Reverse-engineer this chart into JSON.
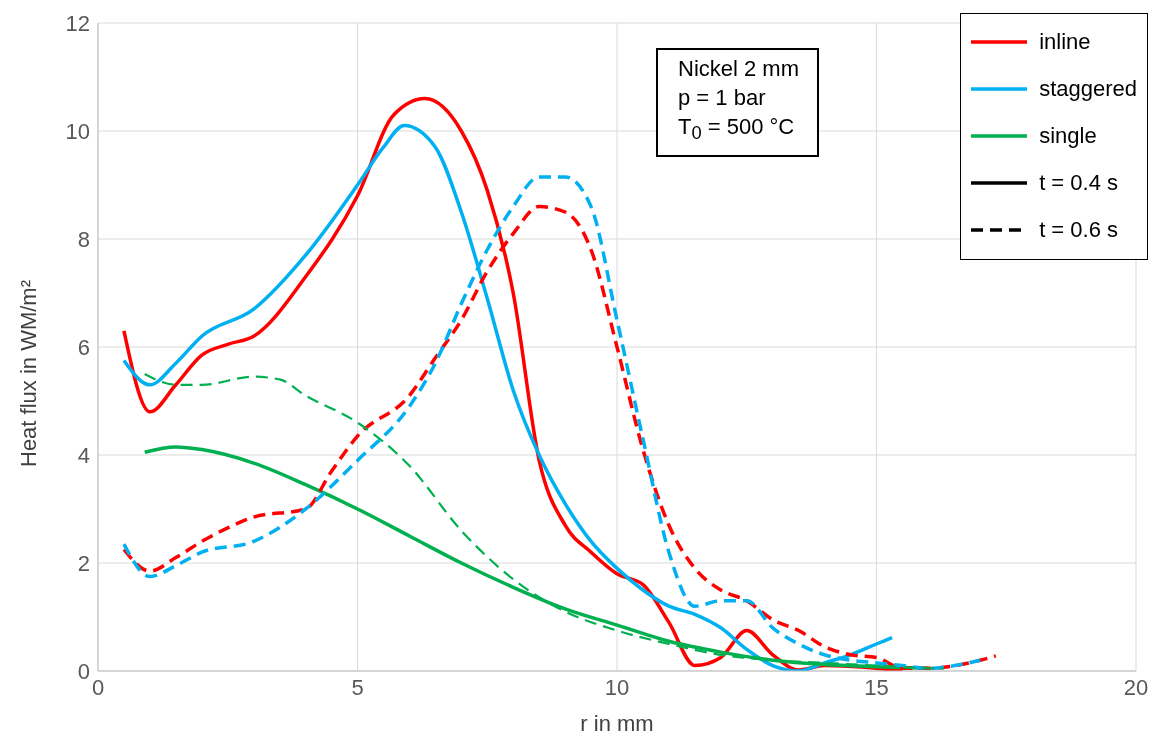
{
  "chart_data": {
    "type": "line",
    "xlabel": "r in mm",
    "ylabel": "Heat flux in WM/m²",
    "xlim": [
      0,
      20
    ],
    "xticks": [
      0,
      5,
      10,
      15,
      20
    ],
    "ylim": [
      0,
      12
    ],
    "yticks": [
      0,
      2,
      4,
      6,
      8,
      10,
      12
    ],
    "grid": true,
    "legend": "top right",
    "marker": "none",
    "annotations": [
      "Nickel 2 mm",
      "p = 1 bar",
      "T$_{0}$ = 500 °C"
    ],
    "series": [
      {
        "name": "inline",
        "color": "#ff0000",
        "line_style": "solid",
        "x": [
          0.5,
          1,
          1.5,
          2,
          2.5,
          3,
          4,
          5,
          5.7,
          6.3,
          7,
          7.5,
          8,
          8.5,
          9,
          9.5,
          10,
          10.5,
          11,
          11.5,
          12,
          12.5,
          13,
          13.5,
          14,
          15,
          15.5
        ],
        "values": [
          6.3,
          4.8,
          5.3,
          5.85,
          6.05,
          6.2,
          7.3,
          8.8,
          10.3,
          10.6,
          10.0,
          8.9,
          7.0,
          3.9,
          2.7,
          2.2,
          1.8,
          1.6,
          0.9,
          0.1,
          0.25,
          0.75,
          0.3,
          0.02,
          0.1,
          0.05,
          0.0
        ]
      },
      {
        "name": "staggered",
        "color": "#00b0f0",
        "line_style": "solid",
        "x": [
          0.5,
          1,
          1.5,
          2,
          3,
          4,
          5,
          5.5,
          5.9,
          6.5,
          7,
          7.5,
          8,
          8.5,
          9,
          9.5,
          10,
          10.5,
          11,
          11.5,
          12,
          12.5,
          13,
          13.5,
          14,
          14.5,
          15,
          15.3
        ],
        "values": [
          5.75,
          5.3,
          5.7,
          6.2,
          6.7,
          7.7,
          9.0,
          9.7,
          10.1,
          9.7,
          8.5,
          6.9,
          5.2,
          4.0,
          3.1,
          2.4,
          1.9,
          1.5,
          1.2,
          1.05,
          0.8,
          0.4,
          0.1,
          0.0,
          0.15,
          0.3,
          0.5,
          0.62
        ]
      },
      {
        "name": "single",
        "color": "#00b050",
        "line_style": "solid",
        "x": [
          0.9,
          1.5,
          2,
          3,
          4,
          5,
          6,
          7,
          8,
          9,
          10,
          11,
          12,
          13,
          14,
          15,
          16
        ],
        "values": [
          4.05,
          4.15,
          4.1,
          3.85,
          3.45,
          3.0,
          2.5,
          2.0,
          1.55,
          1.15,
          0.85,
          0.55,
          0.35,
          0.2,
          0.12,
          0.08,
          0.05
        ]
      },
      {
        "color": "#ff0000",
        "line_style": "dashed",
        "x": [
          0.5,
          1,
          1.5,
          2,
          2.5,
          3,
          4,
          4.5,
          5,
          6,
          6.5,
          7,
          7.5,
          8,
          8.5,
          9,
          9.5,
          10,
          10.5,
          11,
          11.5,
          12,
          12.5,
          13,
          13.5,
          14,
          14.5,
          15,
          15.5,
          16,
          17,
          17.3
        ],
        "values": [
          2.25,
          1.85,
          2.1,
          2.4,
          2.65,
          2.85,
          3.0,
          3.7,
          4.35,
          5.1,
          5.8,
          6.5,
          7.4,
          8.1,
          8.6,
          8.5,
          7.8,
          6.0,
          4.1,
          2.7,
          1.9,
          1.5,
          1.3,
          0.95,
          0.75,
          0.45,
          0.3,
          0.25,
          0.05,
          0.05,
          0.2,
          0.28
        ]
      },
      {
        "color": "#00b0f0",
        "line_style": "dashed",
        "x": [
          0.5,
          1,
          1.5,
          2,
          3,
          4,
          5,
          6,
          6.5,
          7,
          7.5,
          8,
          8.5,
          9,
          9.5,
          10,
          10.5,
          11,
          11.5,
          12,
          12.5,
          13,
          13.5,
          14,
          14.5,
          15,
          15.5,
          16,
          16.5,
          17
        ],
        "values": [
          2.35,
          1.75,
          1.95,
          2.2,
          2.4,
          3.0,
          3.9,
          4.9,
          5.7,
          6.8,
          7.8,
          8.6,
          9.15,
          9.15,
          8.6,
          6.5,
          4.3,
          2.2,
          1.2,
          1.3,
          1.3,
          0.8,
          0.5,
          0.3,
          0.2,
          0.15,
          0.1,
          0.05,
          0.1,
          0.2
        ]
      },
      {
        "color": "#00b050",
        "line_style": "dashed",
        "x": [
          0.9,
          1.5,
          2,
          3,
          3.5,
          4,
          5,
          6,
          7,
          8,
          9,
          10,
          11,
          12,
          13,
          14,
          15,
          16,
          16.3
        ],
        "values": [
          5.5,
          5.3,
          5.3,
          5.45,
          5.4,
          5.1,
          4.6,
          3.8,
          2.6,
          1.7,
          1.1,
          0.75,
          0.5,
          0.3,
          0.2,
          0.15,
          0.1,
          0.05,
          0.05
        ]
      },
      {
        "name": "t = 0.4 s",
        "color": "#000000",
        "line_style": "solid"
      },
      {
        "name": "t = 0.6 s",
        "color": "#000000",
        "line_style": "dashed"
      }
    ]
  }
}
